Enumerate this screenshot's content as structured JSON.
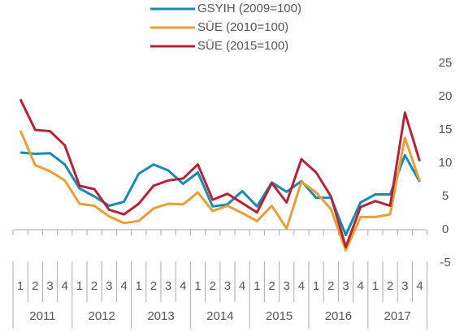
{
  "chart_data": {
    "type": "line",
    "categories": [
      "1",
      "2",
      "3",
      "4",
      "1",
      "2",
      "3",
      "4",
      "1",
      "2",
      "3",
      "4",
      "1",
      "2",
      "3",
      "4",
      "1",
      "2",
      "3",
      "4",
      "1",
      "2",
      "3",
      "4",
      "1",
      "2",
      "3",
      "4"
    ],
    "groups": [
      "2011",
      "2012",
      "2013",
      "2014",
      "2015",
      "2016",
      "2017"
    ],
    "series": [
      {
        "name": "GSYIH (2009=100)",
        "color": "#1b8aae",
        "values": [
          11.6,
          11.4,
          11.5,
          9.8,
          6.2,
          5.0,
          3.6,
          4.2,
          8.4,
          9.8,
          8.9,
          6.9,
          8.6,
          3.5,
          3.8,
          5.8,
          3.5,
          7.1,
          5.7,
          7.3,
          4.8,
          4.8,
          -0.8,
          4.1,
          5.3,
          5.3,
          11.2,
          7.2
        ]
      },
      {
        "name": "SÜE (2010=100)",
        "color": "#e89f3a",
        "values": [
          14.9,
          9.7,
          8.8,
          7.4,
          3.9,
          3.6,
          2.0,
          1.0,
          1.3,
          3.2,
          3.9,
          3.8,
          5.6,
          2.8,
          3.6,
          2.5,
          1.3,
          3.6,
          0.2,
          7.2,
          5.6,
          3.1,
          -3.1,
          1.9,
          1.9,
          2.3,
          13.8,
          7.3
        ]
      },
      {
        "name": "SÜE (2015=100)",
        "color": "#b3243b",
        "values": [
          19.6,
          15.0,
          14.8,
          12.7,
          6.6,
          6.1,
          3.0,
          2.3,
          3.9,
          6.6,
          7.4,
          7.7,
          9.8,
          4.5,
          5.4,
          4.0,
          2.6,
          7.0,
          4.1,
          10.6,
          8.6,
          5.0,
          -2.6,
          3.4,
          4.3,
          3.6,
          17.6,
          10.3
        ]
      }
    ],
    "ylim": [
      -5,
      25
    ],
    "yticks": [
      -5,
      0,
      5,
      10,
      15,
      20,
      25
    ],
    "grid": false,
    "legend": "top"
  }
}
